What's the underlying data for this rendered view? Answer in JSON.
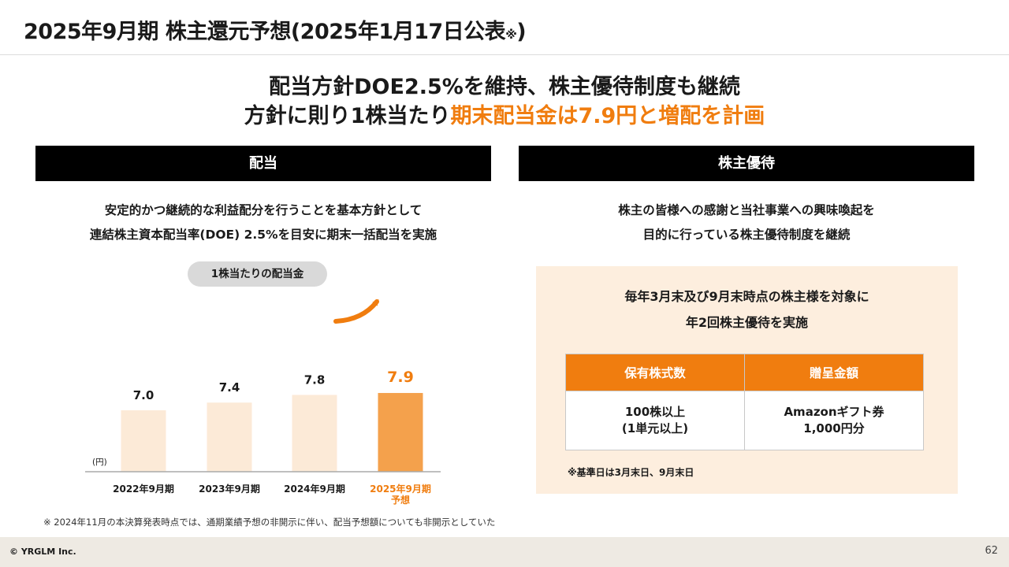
{
  "header": {
    "title": "2025年9月期 株主還元予想(2025年1月17日公表",
    "title_note_mark": "※",
    "title_close": ")"
  },
  "headline": {
    "line1": "配当方針DOE2.5%を維持、株主優待制度も継続",
    "line2_prefix": "方針に則り1株当たり",
    "line2_accent": "期末配当金は7.9円と増配を計画"
  },
  "dividend": {
    "heading": "配当",
    "desc_line1": "安定的かつ継続的な利益配分を行うことを基本方針として",
    "desc_line2": "連結株主資本配当率(DOE) 2.5%を目安に期末一括配当を実施",
    "pill_label": "1株当たりの配当金"
  },
  "chart_data": {
    "type": "bar",
    "categories": [
      "2022年9月期",
      "2023年9月期",
      "2024年9月期",
      "2025年9月期"
    ],
    "category_sub": [
      "",
      "",
      "",
      "予想"
    ],
    "values": [
      7.0,
      7.4,
      7.8,
      7.9
    ],
    "value_labels": [
      "7.0",
      "7.4",
      "7.8",
      "7.9"
    ],
    "unit_label": "(円)",
    "colors": {
      "past": "#fcead7",
      "forecast": "#f4a14c",
      "forecast_text": "#f07d0f",
      "axis": "#aaaaaa"
    }
  },
  "benefits": {
    "heading": "株主優待",
    "desc_line1": "株主の皆様への感謝と当社事業への興味喚起を",
    "desc_line2": "目的に行っている株主優待制度を継続",
    "box_line1": "毎年3月末及び9月末時点の株主様を対象に",
    "box_line2": "年2回株主優待を実施",
    "table": {
      "col1_header": "保有株式数",
      "col2_header": "贈呈金額",
      "col1_value_line1": "100株以上",
      "col1_value_line2": "(1単元以上)",
      "col2_value_line1": "Amazonギフト券",
      "col2_value_line2": "1,000円分"
    },
    "footnote": "※基準日は3月末日、9月末日"
  },
  "note": "※ 2024年11月の本決算発表時点では、通期業績予想の非開示に伴い、配当予想額についても非開示としていた",
  "footer": {
    "copyright": "© YRGLM Inc.",
    "page_number": "62"
  },
  "colors": {
    "accent": "#f07d0f",
    "section_head_bg": "#000000",
    "benefit_bg": "#fdeede",
    "footer_bg": "#eeeae3"
  }
}
